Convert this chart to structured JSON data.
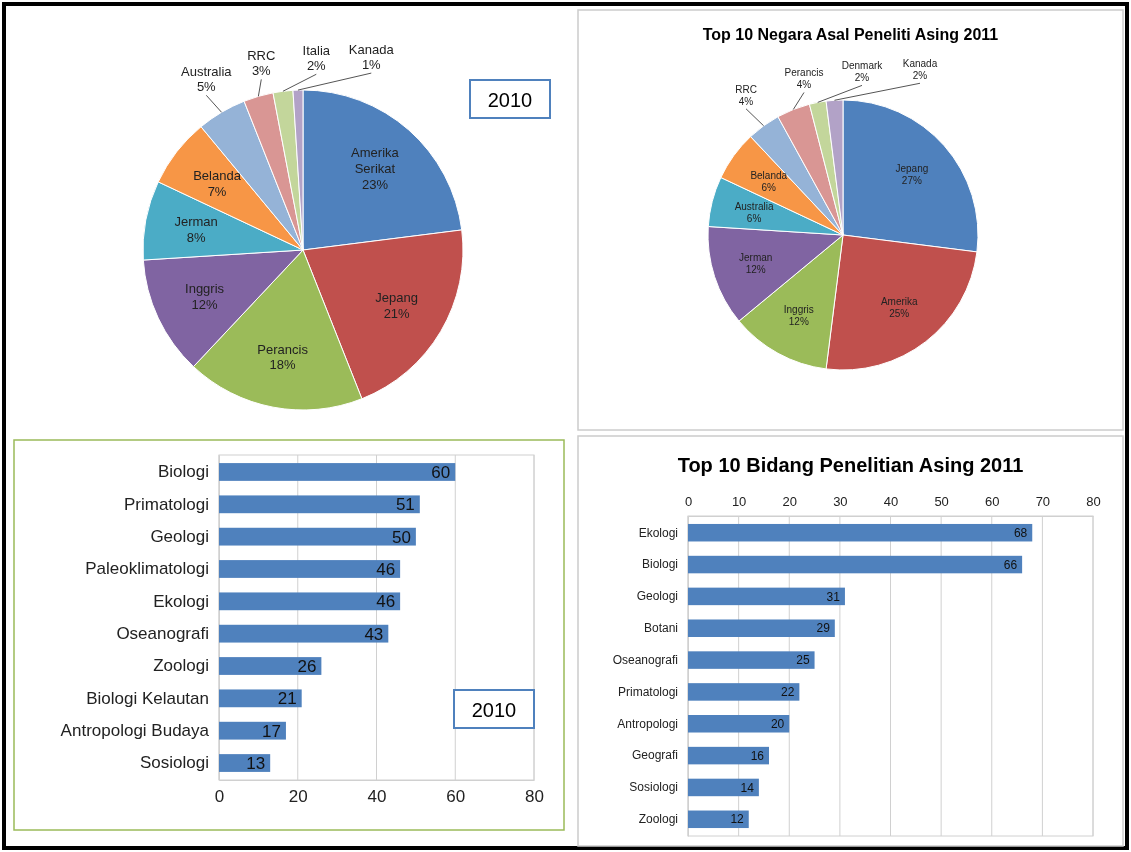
{
  "chart_data": [
    {
      "type": "pie",
      "annotations": [
        "2010"
      ],
      "categories": [
        "Amerika Serikat",
        "Jepang",
        "Perancis",
        "Inggris",
        "Jerman",
        "Belanda",
        "Australia",
        "RRC",
        "Italia",
        "Kanada"
      ],
      "values": [
        23,
        21,
        18,
        12,
        8,
        7,
        5,
        3,
        2,
        1
      ],
      "value_labels": [
        "23%",
        "21%",
        "18%",
        "12%",
        "8%",
        "7%",
        "5%",
        "3%",
        "2%",
        "1%"
      ],
      "colors": [
        "#4f81bd",
        "#c0504d",
        "#9bbb59",
        "#8064a2",
        "#4bacc6",
        "#f79646",
        "#95b3d7",
        "#d99694",
        "#c3d69b",
        "#b2a2c7"
      ]
    },
    {
      "type": "pie",
      "title": "Top 10 Negara Asal Peneliti Asing 2011",
      "categories": [
        "Jepang",
        "Amerika",
        "Inggris",
        "Jerman",
        "Australia",
        "Belanda",
        "RRC",
        "Perancis",
        "Denmark",
        "Kanada"
      ],
      "values": [
        27,
        25,
        12,
        12,
        6,
        6,
        4,
        4,
        2,
        2
      ],
      "value_labels": [
        "27%",
        "25%",
        "12%",
        "12%",
        "6%",
        "6%",
        "4%",
        "4%",
        "2%",
        "2%"
      ],
      "colors": [
        "#4f81bd",
        "#c0504d",
        "#9bbb59",
        "#8064a2",
        "#4bacc6",
        "#f79646",
        "#95b3d7",
        "#d99694",
        "#c3d69b",
        "#b2a2c7"
      ]
    },
    {
      "type": "bar",
      "orientation": "horizontal",
      "annotations": [
        "2010"
      ],
      "categories": [
        "Biologi",
        "Primatologi",
        "Geologi",
        "Paleoklimatologi",
        "Ekologi",
        "Oseanografi",
        "Zoologi",
        "Biologi Kelautan",
        "Antropologi Budaya",
        "Sosiologi"
      ],
      "values": [
        60,
        51,
        50,
        46,
        46,
        43,
        26,
        21,
        17,
        13
      ],
      "color": "#4f81bd",
      "xlim": [
        0,
        80
      ],
      "xticks": [
        0,
        20,
        40,
        60,
        80
      ],
      "grid": "x",
      "data_labels": true
    },
    {
      "type": "bar",
      "orientation": "horizontal",
      "title": "Top 10 Bidang Penelitian Asing 2011",
      "categories": [
        "Ekologi",
        "Biologi",
        "Geologi",
        "Botani",
        "Oseanografi",
        "Primatologi",
        "Antropologi",
        "Geografi",
        "Sosiologi",
        "Zoologi"
      ],
      "values": [
        68,
        66,
        31,
        29,
        25,
        22,
        20,
        16,
        14,
        12
      ],
      "color": "#4f81bd",
      "xlim": [
        0,
        80
      ],
      "xticks": [
        0,
        10,
        20,
        30,
        40,
        50,
        60,
        70,
        80
      ],
      "grid": "x",
      "data_labels": true
    }
  ]
}
